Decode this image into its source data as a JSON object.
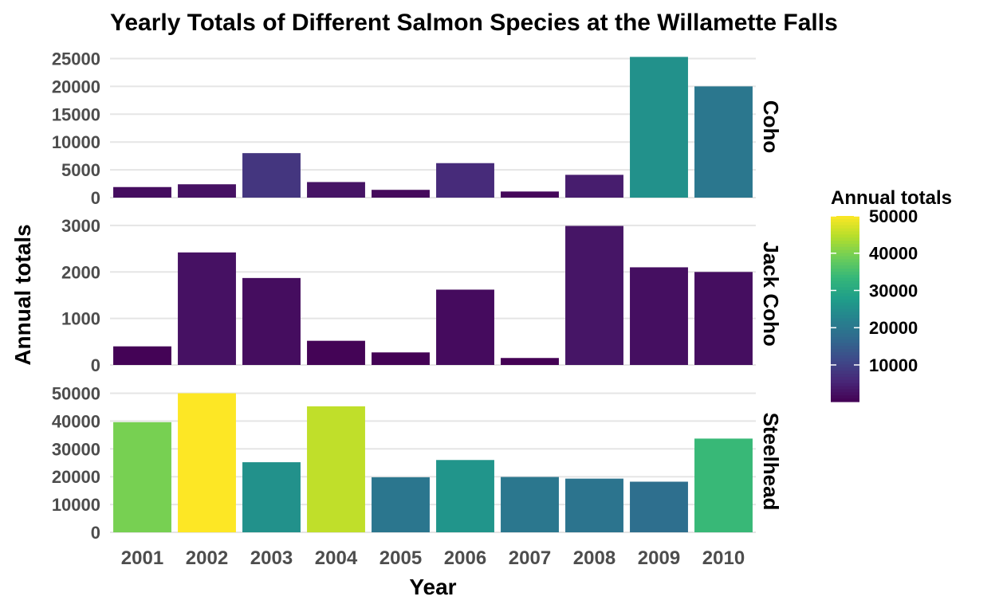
{
  "chart_data": {
    "type": "bar",
    "title": "Yearly Totals of Different Salmon Species at the Willamette Falls",
    "xlabel": "Year",
    "ylabel": "Annual totals",
    "categories": [
      "2001",
      "2002",
      "2003",
      "2004",
      "2005",
      "2006",
      "2007",
      "2008",
      "2009",
      "2010"
    ],
    "grid": true,
    "legend": {
      "title": "Annual totals",
      "placement": "right",
      "type": "colorbar",
      "ticks": [
        "10000",
        "20000",
        "30000",
        "40000",
        "50000"
      ],
      "range": [
        150,
        50000
      ],
      "palette": "viridis"
    },
    "panels": [
      {
        "name": "Coho",
        "ylim": [
          0,
          25500
        ],
        "yticks": [
          0,
          5000,
          10000,
          15000,
          20000,
          25000
        ],
        "values": [
          1900,
          2400,
          8000,
          2800,
          1400,
          6200,
          1100,
          4100,
          25300,
          20000
        ]
      },
      {
        "name": "Jack Coho",
        "ylim": [
          0,
          3050
        ],
        "yticks": [
          0,
          1000,
          2000,
          3000
        ],
        "values": [
          400,
          2420,
          1870,
          520,
          270,
          1620,
          150,
          2990,
          2100,
          2000
        ]
      },
      {
        "name": "Steelhead",
        "ylim": [
          0,
          51000
        ],
        "yticks": [
          0,
          10000,
          20000,
          30000,
          40000,
          50000
        ],
        "values": [
          39600,
          50000,
          25200,
          45300,
          19800,
          26000,
          19900,
          19300,
          18200,
          33700
        ]
      }
    ]
  }
}
